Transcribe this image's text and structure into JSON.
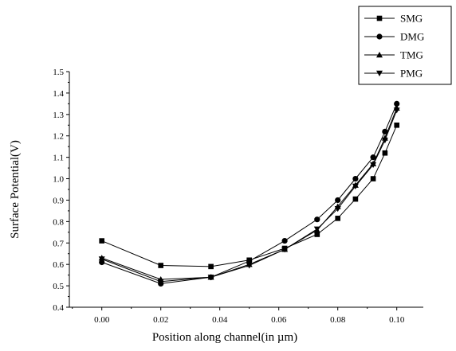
{
  "chart_data": {
    "type": "line",
    "title": "",
    "xlabel": "Position along channel(in µm)",
    "ylabel": "Surface Potential(V)",
    "xlim": [
      -0.011,
      0.109
    ],
    "ylim": [
      0.4,
      1.5
    ],
    "xticks": [
      "0.00",
      "0.02",
      "0.04",
      "0.06",
      "0.08",
      "0.10"
    ],
    "yticks": [
      "0.4",
      "0.5",
      "0.6",
      "0.7",
      "0.8",
      "0.9",
      "1.0",
      "1.1",
      "1.2",
      "1.3",
      "1.4",
      "1.5"
    ],
    "x": [
      0.0,
      0.02,
      0.037,
      0.05,
      0.062,
      0.073,
      0.08,
      0.086,
      0.092,
      0.096,
      0.1
    ],
    "grid": false,
    "legend_position": "top-right",
    "series": [
      {
        "name": "SMG",
        "marker": "square",
        "values": [
          0.71,
          0.595,
          0.59,
          0.62,
          0.675,
          0.74,
          0.815,
          0.905,
          1.0,
          1.12,
          1.25
        ]
      },
      {
        "name": "DMG",
        "marker": "circle",
        "values": [
          0.61,
          0.51,
          0.54,
          0.615,
          0.71,
          0.81,
          0.9,
          1.0,
          1.1,
          1.22,
          1.35
        ]
      },
      {
        "name": "TMG",
        "marker": "triangle-up",
        "values": [
          0.63,
          0.53,
          0.54,
          0.6,
          0.67,
          0.76,
          0.87,
          0.97,
          1.07,
          1.19,
          1.33
        ]
      },
      {
        "name": "PMG",
        "marker": "triangle-down",
        "values": [
          0.625,
          0.52,
          0.54,
          0.595,
          0.67,
          0.765,
          0.86,
          0.965,
          1.065,
          1.18,
          1.32
        ]
      }
    ],
    "colors": {
      "line": "#000000",
      "background": "#ffffff"
    }
  }
}
